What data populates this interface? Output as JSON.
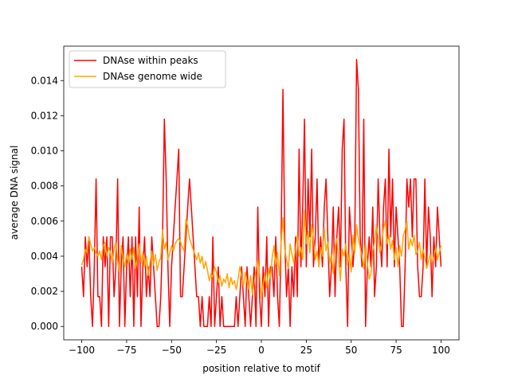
{
  "chart_data": {
    "type": "line",
    "xlabel": "position relative to motif",
    "ylabel": "average DNA signal",
    "x": [
      -100,
      -99,
      -98,
      -97,
      -96,
      -95,
      -94,
      -93,
      -92,
      -91,
      -90,
      -89,
      -88,
      -87,
      -86,
      -85,
      -84,
      -83,
      -82,
      -81,
      -80,
      -79,
      -78,
      -77,
      -76,
      -75,
      -74,
      -73,
      -72,
      -71,
      -70,
      -69,
      -68,
      -67,
      -66,
      -65,
      -64,
      -63,
      -62,
      -61,
      -60,
      -59,
      -58,
      -57,
      -56,
      -55,
      -54,
      -53,
      -52,
      -51,
      -50,
      -49,
      -48,
      -47,
      -46,
      -45,
      -44,
      -43,
      -42,
      -41,
      -40,
      -39,
      -38,
      -37,
      -36,
      -35,
      -34,
      -33,
      -32,
      -31,
      -30,
      -29,
      -28,
      -27,
      -26,
      -25,
      -24,
      -23,
      -22,
      -21,
      -20,
      -19,
      -18,
      -17,
      -16,
      -15,
      -14,
      -13,
      -12,
      -11,
      -10,
      -9,
      -8,
      -7,
      -6,
      -5,
      -4,
      -3,
      -2,
      -1,
      0,
      1,
      2,
      3,
      4,
      5,
      6,
      7,
      8,
      9,
      10,
      11,
      12,
      13,
      14,
      15,
      16,
      17,
      18,
      19,
      20,
      21,
      22,
      23,
      24,
      25,
      26,
      27,
      28,
      29,
      30,
      31,
      32,
      33,
      34,
      35,
      36,
      37,
      38,
      39,
      40,
      41,
      42,
      43,
      44,
      45,
      46,
      47,
      48,
      49,
      50,
      51,
      52,
      53,
      54,
      55,
      56,
      57,
      58,
      59,
      60,
      61,
      62,
      63,
      64,
      65,
      66,
      67,
      68,
      69,
      70,
      71,
      72,
      73,
      74,
      75,
      76,
      77,
      78,
      79,
      80,
      81,
      82,
      83,
      84,
      85,
      86,
      87,
      88,
      89,
      90,
      91,
      92,
      93,
      94,
      95,
      96,
      97,
      98,
      99,
      100
    ],
    "series": [
      {
        "name": "DNAse within peaks",
        "color": "#ff0000",
        "values": [
          0.0034,
          0.0017,
          0.0051,
          0.0034,
          0.0051,
          0.0017,
          0,
          0.0034,
          0.0084,
          0.0017,
          0.0017,
          0,
          0.0051,
          0.0034,
          0.0051,
          0,
          0.0051,
          0.0051,
          0.0017,
          0.0034,
          0.0084,
          0,
          0.0034,
          0.0051,
          0,
          0.0034,
          0.0051,
          0.0017,
          0.0051,
          0,
          0.0051,
          0.0017,
          0.0068,
          0,
          0.0034,
          0.0051,
          0.0017,
          0.0034,
          0.0017,
          0.0051,
          0.0034,
          0.0017,
          0,
          0,
          0.0017,
          0.0051,
          0.0118,
          0.0084,
          0.0034,
          0,
          0.0034,
          0.0051,
          0.0068,
          0.0084,
          0.0101,
          0.0017,
          0.0017,
          0.0034,
          0.0051,
          0.0068,
          0.0084,
          0.0068,
          0.0051,
          0.0034,
          0.0017,
          0.0017,
          0,
          0.0017,
          0,
          0,
          0,
          0.0017,
          0,
          0.0051,
          0,
          0.0017,
          0.0034,
          0,
          0.0017,
          0,
          0,
          0,
          0,
          0,
          0,
          0,
          0.0017,
          0,
          0.0017,
          0.0034,
          0.0017,
          0,
          0.0034,
          0.0017,
          0,
          0.0017,
          0.0034,
          0,
          0.0068,
          0.0017,
          0,
          0.0034,
          0.0017,
          0.0051,
          0,
          0.0034,
          0.0034,
          0.0017,
          0.0051,
          0.0017,
          0,
          0.0051,
          0.0135,
          0.0051,
          0.0017,
          0.0034,
          0,
          0.0034,
          0.0017,
          0.0051,
          0.0017,
          0.0101,
          0.0034,
          0.0068,
          0.0118,
          0.0034,
          0.0084,
          0.0051,
          0.0101,
          0.0034,
          0.0051,
          0.0084,
          0.0034,
          0.0051,
          0.0034,
          0.0068,
          0.0084,
          0.0051,
          0.0017,
          0.0034,
          0.0068,
          0.0017,
          0.0051,
          0.0068,
          0.0034,
          0.0101,
          0.0118,
          0.0034,
          0,
          0.0068,
          0.0051,
          0.0034,
          0.0051,
          0.0152,
          0.0135,
          0.0051,
          0.0034,
          0.0118,
          0,
          0.0034,
          0.0051,
          0.0034,
          0.0068,
          0.0017,
          0.0034,
          0.0084,
          0.0051,
          0.0034,
          0.0068,
          0.0084,
          0.0034,
          0.0101,
          0.0051,
          0.0084,
          0.0034,
          0.0068,
          0.0051,
          0.0034,
          0,
          0,
          0.0034,
          0.0084,
          0.0068,
          0.0084,
          0.0051,
          0.0084,
          0.0084,
          0.0034,
          0.0017,
          0.0017,
          0.0034,
          0.0084,
          0.0034,
          0.0068,
          0.0051,
          0.0017,
          0.0051,
          0.0034,
          0.0068,
          0.0051,
          0.0034
        ]
      },
      {
        "name": "DNAse genome wide",
        "color": "#ffa500",
        "values": [
          0.0035,
          0.0038,
          0.0044,
          0.0042,
          0.0051,
          0.0047,
          0.0043,
          0.0045,
          0.0042,
          0.004,
          0.0043,
          0.0038,
          0.0046,
          0.0048,
          0.004,
          0.0045,
          0.0042,
          0.0036,
          0.0044,
          0.0048,
          0.0038,
          0.0031,
          0.0046,
          0.0039,
          0.0034,
          0.0041,
          0.0036,
          0.0044,
          0.0038,
          0.0045,
          0.0033,
          0.0039,
          0.0047,
          0.0036,
          0.0042,
          0.0034,
          0.004,
          0.0029,
          0.0036,
          0.0043,
          0.0035,
          0.0041,
          0.0032,
          0.0037,
          0.0039,
          0.0055,
          0.0044,
          0.0048,
          0.0038,
          0.0042,
          0.0046,
          0.0043,
          0.0047,
          0.0049,
          0.005,
          0.0048,
          0.0045,
          0.0043,
          0.0061,
          0.0057,
          0.005,
          0.0047,
          0.0044,
          0.0041,
          0.0038,
          0.0042,
          0.0036,
          0.004,
          0.0033,
          0.0037,
          0.0032,
          0.0026,
          0.003,
          0.0028,
          0.0034,
          0.0031,
          0.0025,
          0.0029,
          0.0023,
          0.0027,
          0.0025,
          0.003,
          0.0022,
          0.0028,
          0.0024,
          0.0026,
          0.0021,
          0.0027,
          0.0034,
          0.0029,
          0.0023,
          0.0031,
          0.0026,
          0.0021,
          0.0029,
          0.0018,
          0.0025,
          0.0032,
          0.0038,
          0.003,
          0.0016,
          0.0024,
          0.003,
          0.0022,
          0.0033,
          0.0027,
          0.0039,
          0.0046,
          0.0035,
          0.0042,
          0.0029,
          0.0048,
          0.0062,
          0.0044,
          0.0038,
          0.0033,
          0.0047,
          0.0041,
          0.0036,
          0.0044,
          0.0052,
          0.004,
          0.0045,
          0.0038,
          0.0066,
          0.0047,
          0.0054,
          0.0042,
          0.0058,
          0.005,
          0.0038,
          0.0043,
          0.0034,
          0.0045,
          0.004,
          0.0056,
          0.0043,
          0.0048,
          0.0036,
          0.0041,
          0.003,
          0.0045,
          0.005,
          0.0038,
          0.0026,
          0.0044,
          0.004,
          0.0047,
          0.0035,
          0.0041,
          0.0031,
          0.0052,
          0.0042,
          0.0058,
          0.005,
          0.0045,
          0.004,
          0.0033,
          0.0047,
          0.0036,
          0.0027,
          0.003,
          0.0043,
          0.0048,
          0.0058,
          0.0051,
          0.0042,
          0.0048,
          0.0056,
          0.006,
          0.0047,
          0.0052,
          0.0044,
          0.0049,
          0.0038,
          0.0045,
          0.0034,
          0.0046,
          0.004,
          0.0052,
          0.0055,
          0.006,
          0.0044,
          0.005,
          0.0046,
          0.0052,
          0.0041,
          0.0043,
          0.0048,
          0.0038,
          0.0044,
          0.0039,
          0.0033,
          0.0037,
          0.0041,
          0.0036,
          0.004,
          0.0045,
          0.0038,
          0.0042,
          0.0046
        ]
      }
    ],
    "xlim": [
      -110,
      110
    ],
    "xticks": [
      {
        "value": -100,
        "label": "−100"
      },
      {
        "value": -75,
        "label": "−75"
      },
      {
        "value": -50,
        "label": "−50"
      },
      {
        "value": -25,
        "label": "−25"
      },
      0,
      25,
      50,
      75,
      100
    ],
    "ylim": [
      -0.00076,
      0.01596
    ],
    "yticks": [
      {
        "value": 0,
        "label": "0.000"
      },
      {
        "value": 0.002,
        "label": "0.002"
      },
      {
        "value": 0.004,
        "label": "0.004"
      },
      {
        "value": 0.006,
        "label": "0.006"
      },
      {
        "value": 0.008,
        "label": "0.008"
      },
      {
        "value": 0.01,
        "label": "0.010"
      },
      {
        "value": 0.012,
        "label": "0.012"
      },
      {
        "value": 0.014,
        "label": "0.014"
      }
    ],
    "legend": "upper left"
  }
}
